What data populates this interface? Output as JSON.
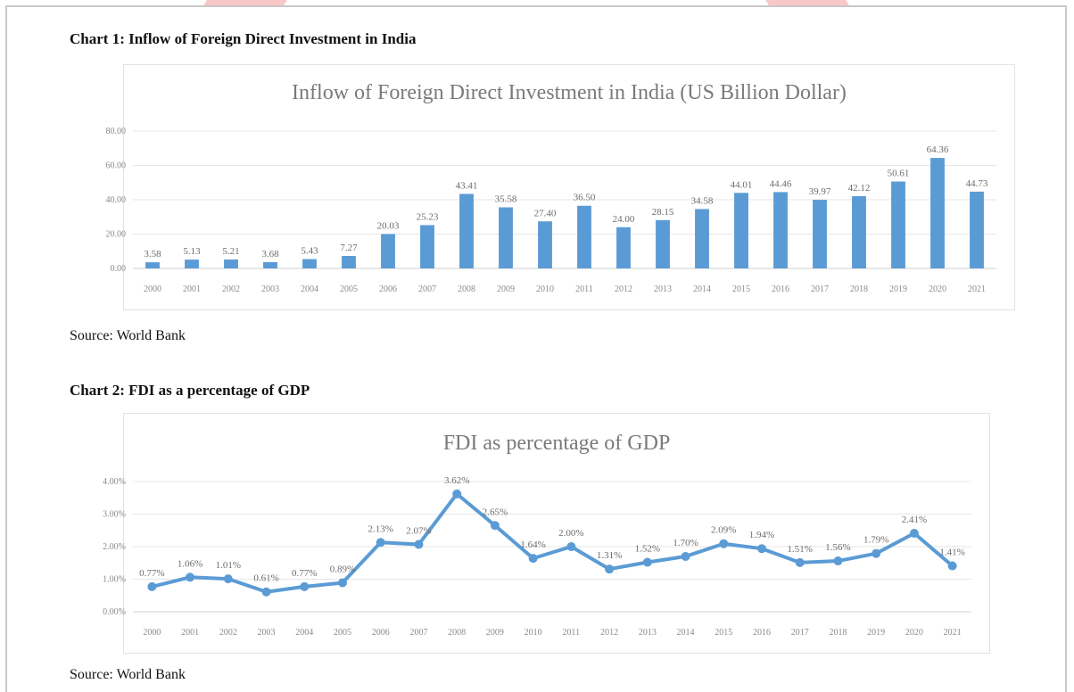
{
  "chart_data": [
    {
      "type": "bar",
      "heading": "Chart 1: Inflow of Foreign Direct Investment in India",
      "title": "Inflow of Foreign Direct Investment in India (US Billion Dollar)",
      "source": "Source: World Bank",
      "xlabel": "",
      "ylabel": "",
      "ylim": [
        0,
        80
      ],
      "y_ticks": [
        "0.00",
        "20.00",
        "40.00",
        "60.00",
        "80.00"
      ],
      "y_tick_values": [
        0,
        20,
        40,
        60,
        80
      ],
      "categories": [
        "2000",
        "2001",
        "2002",
        "2003",
        "2004",
        "2005",
        "2006",
        "2007",
        "2008",
        "2009",
        "2010",
        "2011",
        "2012",
        "2013",
        "2014",
        "2015",
        "2016",
        "2017",
        "2018",
        "2019",
        "2020",
        "2021"
      ],
      "values": [
        3.58,
        5.13,
        5.21,
        3.68,
        5.43,
        7.27,
        20.03,
        25.23,
        43.41,
        35.58,
        27.4,
        36.5,
        24.0,
        28.15,
        34.58,
        44.01,
        44.46,
        39.97,
        42.12,
        50.61,
        64.36,
        44.73
      ],
      "data_labels": [
        "3.58",
        "5.13",
        "5.21",
        "3.68",
        "5.43",
        "7.27",
        "20.03",
        "25.23",
        "43.41",
        "35.58",
        "27.40",
        "36.50",
        "24.00",
        "28.15",
        "34.58",
        "44.01",
        "44.46",
        "39.97",
        "42.12",
        "50.61",
        "64.36",
        "44.73"
      ],
      "grid": true,
      "color": "#5b9bd5"
    },
    {
      "type": "line",
      "heading": "Chart 2: FDI as a percentage of GDP",
      "title": "FDI as percentage of GDP",
      "source": "Source: World Bank",
      "xlabel": "",
      "ylabel": "",
      "ylim": [
        0,
        4
      ],
      "y_ticks": [
        "0.00%",
        "1.00%",
        "2.00%",
        "3.00%",
        "4.00%"
      ],
      "y_tick_values": [
        0,
        1,
        2,
        3,
        4
      ],
      "categories": [
        "2000",
        "2001",
        "2002",
        "2003",
        "2004",
        "2005",
        "2006",
        "2007",
        "2008",
        "2009",
        "2010",
        "2011",
        "2012",
        "2013",
        "2014",
        "2015",
        "2016",
        "2017",
        "2018",
        "2019",
        "2020",
        "2021"
      ],
      "values": [
        0.77,
        1.06,
        1.01,
        0.61,
        0.77,
        0.89,
        2.13,
        2.07,
        3.62,
        2.65,
        1.64,
        2.0,
        1.31,
        1.52,
        1.7,
        2.09,
        1.94,
        1.51,
        1.56,
        1.79,
        2.41,
        1.41
      ],
      "data_labels": [
        "0.77%",
        "1.06%",
        "1.01%",
        "0.61%",
        "0.77%",
        "0.89%",
        "2.13%",
        "2.07%",
        "3.62%",
        "2.65%",
        "1.64%",
        "2.00%",
        "1.31%",
        "1.52%",
        "1.70%",
        "2.09%",
        "1.94%",
        "1.51%",
        "1.56%",
        "1.79%",
        "2.41%",
        "1.41%"
      ],
      "grid": true,
      "color": "#5b9bd5"
    }
  ]
}
